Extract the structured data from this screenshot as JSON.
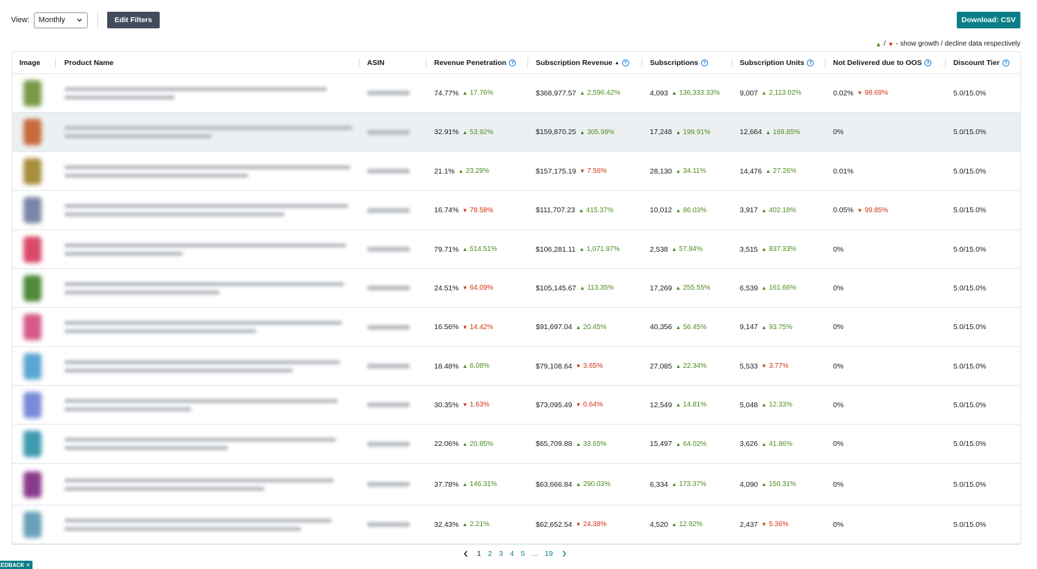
{
  "toolbar": {
    "view_label": "View:",
    "view_selected": "Monthly",
    "edit_filters": "Edit Filters",
    "download": "Download: CSV"
  },
  "legend": {
    "up_glyph": "▲",
    "slash": "/",
    "down_glyph": "▼",
    "text": "- show growth / decline data respectively"
  },
  "columns": {
    "image": "Image",
    "product_name": "Product Name",
    "asin": "ASIN",
    "revenue_penetration": "Revenue Penetration",
    "subscription_revenue": "Subscription Revenue",
    "subscriptions": "Subscriptions",
    "subscription_units": "Subscription Units",
    "not_delivered": "Not Delivered due to OOS",
    "discount_tier": "Discount Tier"
  },
  "colors": {
    "growth": "#4c8b1f",
    "decline": "#d13212",
    "accent": "#0a7e87",
    "dark_button": "#414d5c"
  },
  "thumb_colors": [
    "#7a9a4a",
    "#c96a3c",
    "#a88f3e",
    "#7b86a8",
    "#d94a6a",
    "#4f8a3a",
    "#d65a8a",
    "#5aa6d0",
    "#7a8ad8",
    "#3f9ab0",
    "#8a3a8a",
    "#6aa0b8"
  ],
  "rows": [
    {
      "rev_pen": "74.77%",
      "rev_pen_chg": "17.76%",
      "rev_pen_dir": "up",
      "sub_rev": "$368,977.57",
      "sub_rev_chg": "2,596.42%",
      "sub_rev_dir": "up",
      "subs": "4,093",
      "subs_chg": "136,333.33%",
      "subs_dir": "up",
      "units": "9,007",
      "units_chg": "2,113.02%",
      "units_dir": "up",
      "oos": "0.02%",
      "oos_chg": "98.69%",
      "oos_dir": "down",
      "tier": "5.0/15.0%"
    },
    {
      "rev_pen": "32.91%",
      "rev_pen_chg": "53.92%",
      "rev_pen_dir": "up",
      "sub_rev": "$159,870.25",
      "sub_rev_chg": "305.99%",
      "sub_rev_dir": "up",
      "subs": "17,248",
      "subs_chg": "199.91%",
      "subs_dir": "up",
      "units": "12,664",
      "units_chg": "169.85%",
      "units_dir": "up",
      "oos": "0%",
      "oos_chg": "",
      "oos_dir": "",
      "tier": "5.0/15.0%"
    },
    {
      "rev_pen": "21.1%",
      "rev_pen_chg": "23.29%",
      "rev_pen_dir": "up",
      "sub_rev": "$157,175.19",
      "sub_rev_chg": "7.56%",
      "sub_rev_dir": "down",
      "subs": "28,130",
      "subs_chg": "34.11%",
      "subs_dir": "up",
      "units": "14,476",
      "units_chg": "27.26%",
      "units_dir": "up",
      "oos": "0.01%",
      "oos_chg": "",
      "oos_dir": "",
      "tier": "5.0/15.0%"
    },
    {
      "rev_pen": "16.74%",
      "rev_pen_chg": "78.58%",
      "rev_pen_dir": "down",
      "sub_rev": "$111,707.23",
      "sub_rev_chg": "415.37%",
      "sub_rev_dir": "up",
      "subs": "10,012",
      "subs_chg": "86.03%",
      "subs_dir": "up",
      "units": "3,917",
      "units_chg": "402.18%",
      "units_dir": "up",
      "oos": "0.05%",
      "oos_chg": "99.85%",
      "oos_dir": "down",
      "tier": "5.0/15.0%"
    },
    {
      "rev_pen": "79.71%",
      "rev_pen_chg": "514.51%",
      "rev_pen_dir": "up",
      "sub_rev": "$106,281.11",
      "sub_rev_chg": "1,071.97%",
      "sub_rev_dir": "up",
      "subs": "2,538",
      "subs_chg": "57.84%",
      "subs_dir": "up",
      "units": "3,515",
      "units_chg": "837.33%",
      "units_dir": "up",
      "oos": "0%",
      "oos_chg": "",
      "oos_dir": "",
      "tier": "5.0/15.0%"
    },
    {
      "rev_pen": "24.51%",
      "rev_pen_chg": "64.09%",
      "rev_pen_dir": "down",
      "sub_rev": "$105,145.67",
      "sub_rev_chg": "113.35%",
      "sub_rev_dir": "up",
      "subs": "17,269",
      "subs_chg": "255.55%",
      "subs_dir": "up",
      "units": "6,539",
      "units_chg": "161.66%",
      "units_dir": "up",
      "oos": "0%",
      "oos_chg": "",
      "oos_dir": "",
      "tier": "5.0/15.0%"
    },
    {
      "rev_pen": "16.56%",
      "rev_pen_chg": "14.42%",
      "rev_pen_dir": "down",
      "sub_rev": "$91,697.04",
      "sub_rev_chg": "20.45%",
      "sub_rev_dir": "up",
      "subs": "40,356",
      "subs_chg": "56.45%",
      "subs_dir": "up",
      "units": "9,147",
      "units_chg": "93.75%",
      "units_dir": "up",
      "oos": "0%",
      "oos_chg": "",
      "oos_dir": "",
      "tier": "5.0/15.0%"
    },
    {
      "rev_pen": "18.48%",
      "rev_pen_chg": "6.08%",
      "rev_pen_dir": "up",
      "sub_rev": "$79,108.64",
      "sub_rev_chg": "3.65%",
      "sub_rev_dir": "down",
      "subs": "27,085",
      "subs_chg": "22.34%",
      "subs_dir": "up",
      "units": "5,533",
      "units_chg": "3.77%",
      "units_dir": "down",
      "oos": "0%",
      "oos_chg": "",
      "oos_dir": "",
      "tier": "5.0/15.0%"
    },
    {
      "rev_pen": "30.35%",
      "rev_pen_chg": "1.63%",
      "rev_pen_dir": "down",
      "sub_rev": "$73,095.49",
      "sub_rev_chg": "0.64%",
      "sub_rev_dir": "down",
      "subs": "12,549",
      "subs_chg": "14.81%",
      "subs_dir": "up",
      "units": "5,048",
      "units_chg": "12.33%",
      "units_dir": "up",
      "oos": "0%",
      "oos_chg": "",
      "oos_dir": "",
      "tier": "5.0/15.0%"
    },
    {
      "rev_pen": "22.06%",
      "rev_pen_chg": "20.85%",
      "rev_pen_dir": "up",
      "sub_rev": "$65,709.88",
      "sub_rev_chg": "33.65%",
      "sub_rev_dir": "up",
      "subs": "15,497",
      "subs_chg": "64.02%",
      "subs_dir": "up",
      "units": "3,626",
      "units_chg": "41.86%",
      "units_dir": "up",
      "oos": "0%",
      "oos_chg": "",
      "oos_dir": "",
      "tier": "5.0/15.0%"
    },
    {
      "rev_pen": "37.78%",
      "rev_pen_chg": "146.31%",
      "rev_pen_dir": "up",
      "sub_rev": "$63,666.84",
      "sub_rev_chg": "290.03%",
      "sub_rev_dir": "up",
      "subs": "6,334",
      "subs_chg": "173.37%",
      "subs_dir": "up",
      "units": "4,090",
      "units_chg": "150.31%",
      "units_dir": "up",
      "oos": "0%",
      "oos_chg": "",
      "oos_dir": "",
      "tier": "5.0/15.0%"
    },
    {
      "rev_pen": "32.43%",
      "rev_pen_chg": "2.21%",
      "rev_pen_dir": "up",
      "sub_rev": "$62,652.54",
      "sub_rev_chg": "24.38%",
      "sub_rev_dir": "down",
      "subs": "4,520",
      "subs_chg": "12.92%",
      "subs_dir": "up",
      "units": "2,437",
      "units_chg": "5.36%",
      "units_dir": "down",
      "oos": "0%",
      "oos_chg": "",
      "oos_dir": "",
      "tier": "5.0/15.0%"
    }
  ],
  "pagination": {
    "pages": [
      "1",
      "2",
      "3",
      "4",
      "5"
    ],
    "ellipsis": "...",
    "last": "19",
    "current": "1"
  },
  "feedback_label": "EEDBACK",
  "feedback_close": "✕"
}
